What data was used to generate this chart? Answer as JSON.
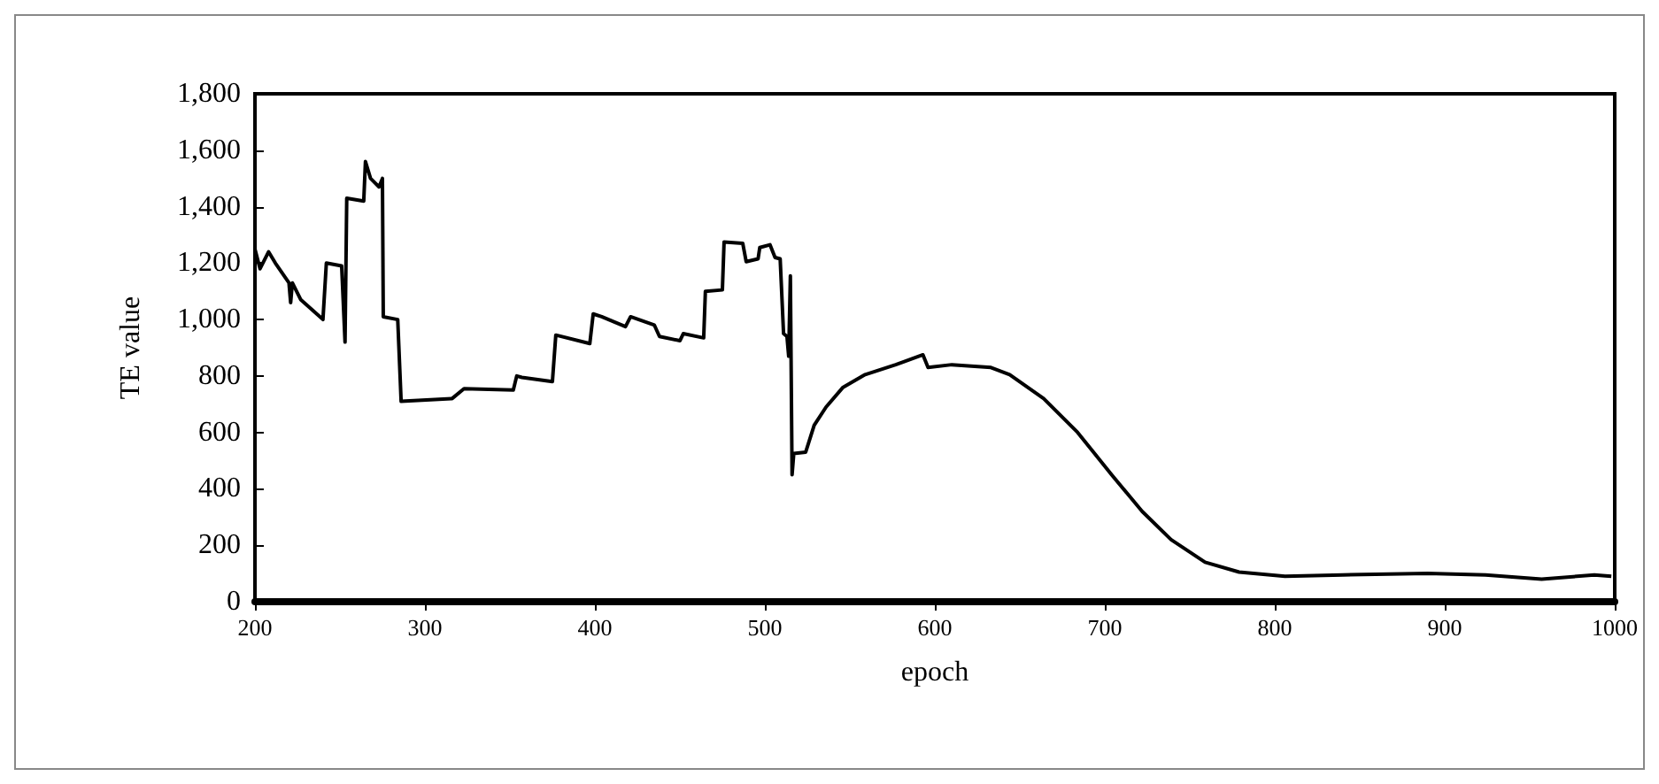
{
  "chart_data": {
    "type": "line",
    "xlabel": "epoch",
    "ylabel": "TE value",
    "xlim": [
      200,
      1000
    ],
    "xticks": [
      200,
      300,
      400,
      500,
      600,
      700,
      800,
      900,
      1000
    ],
    "ylim": [
      0,
      1800
    ],
    "yticks": [
      0,
      200,
      400,
      600,
      800,
      {
        "value": 1000,
        "label": "1,000"
      },
      {
        "value": 1200,
        "label": "1,200"
      },
      {
        "value": 1400,
        "label": "1,400"
      },
      {
        "value": 1600,
        "label": "1,600"
      },
      {
        "value": 1800,
        "label": "1,800"
      }
    ],
    "grid": false,
    "marker": "none",
    "line_style": "solid",
    "series": [
      {
        "color": "#000000",
        "x": [
          200,
          203,
          208,
          212,
          220,
          221,
          222,
          227,
          240,
          242,
          251,
          253,
          254,
          264,
          265,
          268,
          273,
          275,
          275.5,
          284,
          286,
          316,
          323,
          352,
          354,
          357,
          375,
          377,
          397,
          399,
          404,
          418,
          421,
          435,
          438,
          450,
          452,
          464,
          465,
          475,
          476,
          487,
          489,
          496,
          497,
          503,
          506,
          509,
          511,
          513,
          514,
          515,
          516,
          517,
          524,
          529,
          536,
          546,
          559,
          577,
          593,
          596,
          610,
          633,
          644,
          664,
          684,
          704,
          722,
          739,
          759,
          779,
          806,
          840,
          890,
          924,
          957,
          988,
          998
        ],
        "values": [
          1250,
          1180,
          1240,
          1200,
          1130,
          1060,
          1130,
          1070,
          1000,
          1200,
          1190,
          920,
          1430,
          1420,
          1560,
          1500,
          1470,
          1500,
          1010,
          1000,
          710,
          720,
          755,
          750,
          800,
          795,
          780,
          945,
          915,
          1020,
          1010,
          975,
          1010,
          980,
          940,
          925,
          950,
          935,
          1100,
          1105,
          1275,
          1270,
          1205,
          1215,
          1255,
          1265,
          1220,
          1215,
          950,
          940,
          870,
          1155,
          450,
          525,
          530,
          625,
          690,
          760,
          805,
          840,
          875,
          830,
          840,
          830,
          805,
          720,
          600,
          450,
          320,
          220,
          140,
          105,
          90,
          95,
          100,
          95,
          80,
          95,
          90
        ]
      }
    ]
  }
}
